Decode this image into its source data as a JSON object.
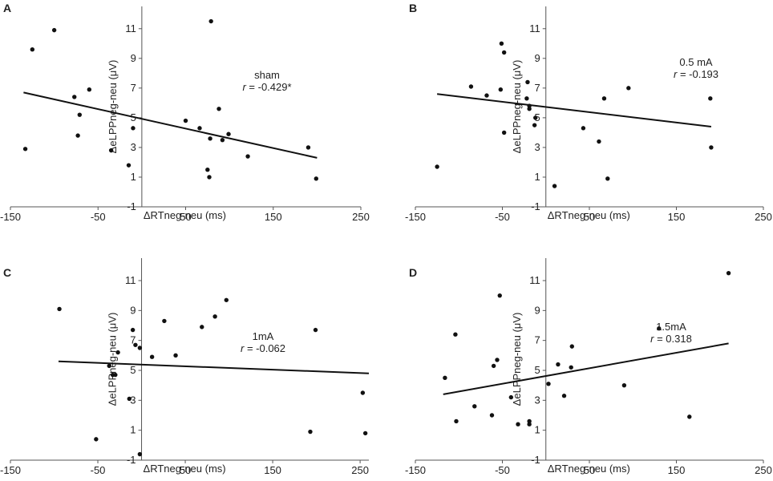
{
  "chart_data": [
    {
      "type": "scatter",
      "panel": "A",
      "condition": "sham",
      "r_prefix": "r",
      "r_value": " = -0.429*",
      "xlabel": "ΔRTneg-neu (ms)",
      "ylabel": "ΔeLPPneg-neu (μV)",
      "xlim": [
        -150,
        250
      ],
      "ylim": [
        -1,
        12.5
      ],
      "xticks": [
        -150,
        -50,
        50,
        150,
        250
      ],
      "yticks": [
        -1,
        1,
        3,
        5,
        7,
        9,
        11
      ],
      "xtick_labels": [
        "-150",
        "-50",
        "50",
        "150",
        "250"
      ],
      "ytick_labels": [
        "-1",
        "1",
        "3",
        "5",
        "7",
        "9",
        "11"
      ],
      "points": [
        [
          -133,
          2.9
        ],
        [
          -125,
          9.6
        ],
        [
          -100,
          10.9
        ],
        [
          -77,
          6.4
        ],
        [
          -71,
          5.2
        ],
        [
          -73,
          3.8
        ],
        [
          -60,
          6.9
        ],
        [
          -35,
          2.8
        ],
        [
          -15,
          1.8
        ],
        [
          -10,
          4.3
        ],
        [
          50,
          4.8
        ],
        [
          66,
          4.3
        ],
        [
          75,
          1.5
        ],
        [
          78,
          3.6
        ],
        [
          77,
          1.0
        ],
        [
          79,
          11.5
        ],
        [
          88,
          5.6
        ],
        [
          92,
          3.5
        ],
        [
          99,
          3.9
        ],
        [
          121,
          2.4
        ],
        [
          190,
          3.0
        ],
        [
          199,
          0.9
        ]
      ],
      "trendline": [
        [
          -135,
          6.7
        ],
        [
          200,
          2.3
        ]
      ]
    },
    {
      "type": "scatter",
      "panel": "B",
      "condition": "0.5 mA",
      "r_prefix": "r",
      "r_value": " = -0.193",
      "xlabel": "ΔRTneg-neu (ms)",
      "ylabel": "ΔeLPPneg-neu (μV)",
      "xlim": [
        -150,
        250
      ],
      "ylim": [
        -1,
        12.5
      ],
      "xticks": [
        -150,
        -50,
        50,
        150,
        250
      ],
      "yticks": [
        -1,
        1,
        3,
        5,
        7,
        9,
        11
      ],
      "xtick_labels": [
        "-150",
        "-50",
        "50",
        "150",
        "250"
      ],
      "ytick_labels": [
        "-1",
        "1",
        "3",
        "5",
        "7",
        "9",
        "11"
      ],
      "points": [
        [
          -125,
          1.7
        ],
        [
          -86,
          7.1
        ],
        [
          -68,
          6.5
        ],
        [
          -52,
          6.9
        ],
        [
          -51,
          10.0
        ],
        [
          -48,
          9.4
        ],
        [
          -48,
          4.0
        ],
        [
          -21,
          7.4
        ],
        [
          -22,
          6.3
        ],
        [
          -19,
          5.8
        ],
        [
          -19,
          5.6
        ],
        [
          -12,
          5.0
        ],
        [
          -13,
          4.5
        ],
        [
          10,
          0.4
        ],
        [
          43,
          4.3
        ],
        [
          61,
          3.4
        ],
        [
          67,
          6.3
        ],
        [
          71,
          0.9
        ],
        [
          95,
          7.0
        ],
        [
          189,
          6.3
        ],
        [
          190,
          3.0
        ]
      ],
      "trendline": [
        [
          -125,
          6.6
        ],
        [
          190,
          4.4
        ]
      ]
    },
    {
      "type": "scatter",
      "panel": "C",
      "condition": "1mA",
      "r_prefix": "r",
      "r_value": " = -0.062",
      "xlabel": "ΔRTneg-neu (ms)",
      "ylabel": "ΔeLPPneg-neu (μV)",
      "xlim": [
        -150,
        260
      ],
      "ylim": [
        -1,
        12.5
      ],
      "xticks": [
        -150,
        -50,
        50,
        150,
        250
      ],
      "yticks": [
        -1,
        1,
        3,
        5,
        7,
        9,
        11
      ],
      "xtick_labels": [
        "-150",
        "-50",
        "50",
        "150",
        "250"
      ],
      "ytick_labels": [
        "-1",
        "1",
        "3",
        "5",
        "7",
        "9",
        "11"
      ],
      "points": [
        [
          -94,
          9.1
        ],
        [
          -52,
          0.4
        ],
        [
          -37,
          5.3
        ],
        [
          -33,
          4.7
        ],
        [
          -30,
          4.7
        ],
        [
          -27,
          6.2
        ],
        [
          -14,
          3.1
        ],
        [
          -10,
          7.7
        ],
        [
          -7,
          6.7
        ],
        [
          -2,
          6.5
        ],
        [
          -2,
          -0.6
        ],
        [
          12,
          5.9
        ],
        [
          26,
          8.3
        ],
        [
          39,
          6.0
        ],
        [
          69,
          7.9
        ],
        [
          84,
          8.6
        ],
        [
          97,
          9.7
        ],
        [
          193,
          0.9
        ],
        [
          199,
          7.7
        ],
        [
          253,
          3.5
        ],
        [
          256,
          0.8
        ]
      ],
      "trendline": [
        [
          -95,
          5.6
        ],
        [
          260,
          4.8
        ]
      ]
    },
    {
      "type": "scatter",
      "panel": "D",
      "condition": "1.5mA",
      "r_prefix": "r",
      "r_value": " = 0.318",
      "xlabel": "ΔRTneg-neu (ms)",
      "ylabel": "ΔeLPPneg-neu (μV)",
      "xlim": [
        -150,
        250
      ],
      "ylim": [
        -1,
        12.5
      ],
      "xticks": [
        -150,
        -50,
        50,
        150,
        250
      ],
      "yticks": [
        -1,
        1,
        3,
        5,
        7,
        9,
        11
      ],
      "xtick_labels": [
        "-150",
        "-50",
        "50",
        "150",
        "250"
      ],
      "ytick_labels": [
        "-1",
        "1",
        "3",
        "5",
        "7",
        "9",
        "11"
      ],
      "points": [
        [
          -116,
          4.5
        ],
        [
          -104,
          7.4
        ],
        [
          -103,
          1.6
        ],
        [
          -82,
          2.6
        ],
        [
          -62,
          2.0
        ],
        [
          -60,
          5.3
        ],
        [
          -56,
          5.7
        ],
        [
          -53,
          10.0
        ],
        [
          -40,
          3.2
        ],
        [
          -32,
          1.4
        ],
        [
          -19,
          1.6
        ],
        [
          -19,
          1.4
        ],
        [
          3,
          4.1
        ],
        [
          14,
          5.4
        ],
        [
          21,
          3.3
        ],
        [
          29,
          5.2
        ],
        [
          30,
          6.6
        ],
        [
          90,
          4.0
        ],
        [
          130,
          7.8
        ],
        [
          165,
          1.9
        ],
        [
          210,
          11.5
        ]
      ],
      "trendline": [
        [
          -118,
          3.4
        ],
        [
          210,
          6.8
        ]
      ]
    }
  ]
}
